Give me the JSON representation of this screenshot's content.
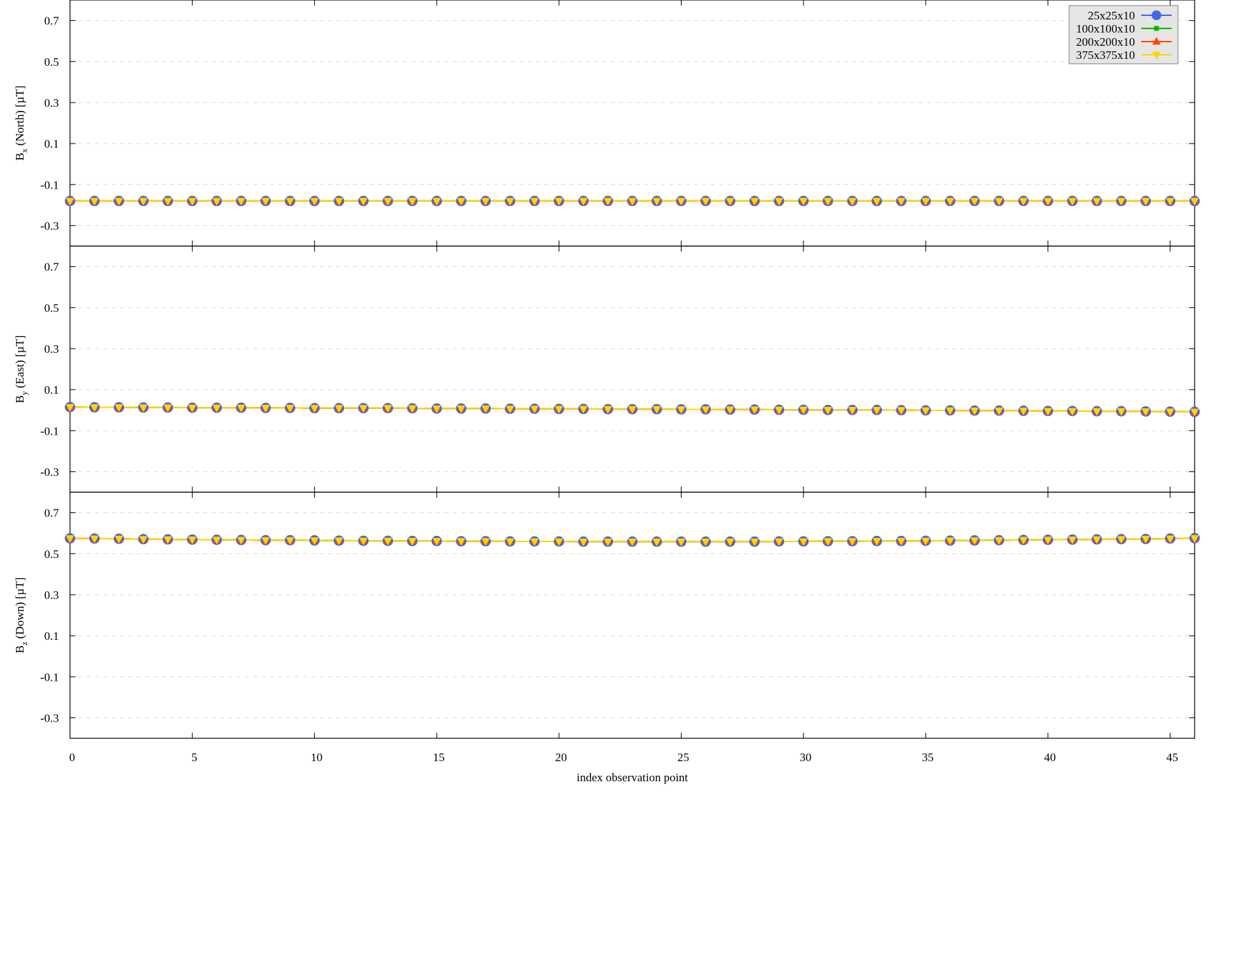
{
  "chart_data": {
    "type": "line",
    "xlabel": "index observation point",
    "x": [
      0,
      1,
      2,
      3,
      4,
      5,
      6,
      7,
      8,
      9,
      10,
      11,
      12,
      13,
      14,
      15,
      16,
      17,
      18,
      19,
      20,
      21,
      22,
      23,
      24,
      25,
      26,
      27,
      28,
      29,
      30,
      31,
      32,
      33,
      34,
      35,
      36,
      37,
      38,
      39,
      40,
      41,
      42,
      43,
      44,
      45,
      46
    ],
    "xlim": [
      0,
      46
    ],
    "xticks": [
      "0",
      "5",
      "10",
      "15",
      "20",
      "25",
      "30",
      "35",
      "40",
      "45"
    ],
    "ylim": [
      -0.4,
      0.8
    ],
    "yticks": [
      "0.7",
      "0.5",
      "0.3",
      "0.1",
      "-0.1",
      "-0.3"
    ],
    "grid": "horizontal dashed",
    "legend": {
      "placement": "top-right",
      "entries": [
        {
          "name": "25x25x10",
          "color": "#4169e1",
          "marker": "circle"
        },
        {
          "name": "100x100x10",
          "color": "#00b400",
          "marker": "square"
        },
        {
          "name": "200x200x10",
          "color": "#ff4500",
          "marker": "triangle-up"
        },
        {
          "name": "375x375x10",
          "color": "#ffd700",
          "marker": "triangle-down"
        }
      ]
    },
    "panels": [
      {
        "ylabel_main": "B",
        "ylabel_sub": "x",
        "ylabel_rest": " (North) [µT]",
        "values": [
          -0.18,
          -0.18,
          -0.18,
          -0.18,
          -0.18,
          -0.18,
          -0.18,
          -0.18,
          -0.18,
          -0.18,
          -0.18,
          -0.18,
          -0.18,
          -0.18,
          -0.18,
          -0.18,
          -0.18,
          -0.18,
          -0.18,
          -0.18,
          -0.18,
          -0.18,
          -0.18,
          -0.18,
          -0.18,
          -0.18,
          -0.18,
          -0.18,
          -0.18,
          -0.18,
          -0.18,
          -0.18,
          -0.18,
          -0.18,
          -0.18,
          -0.18,
          -0.18,
          -0.18,
          -0.18,
          -0.18,
          -0.18,
          -0.18,
          -0.18,
          -0.18,
          -0.18,
          -0.18,
          -0.18
        ]
      },
      {
        "ylabel_main": "B",
        "ylabel_sub": "y",
        "ylabel_rest": " (East) [µT]",
        "values": [
          0.015,
          0.014,
          0.014,
          0.013,
          0.013,
          0.012,
          0.012,
          0.012,
          0.011,
          0.011,
          0.01,
          0.01,
          0.01,
          0.01,
          0.009,
          0.008,
          0.008,
          0.008,
          0.007,
          0.007,
          0.006,
          0.006,
          0.005,
          0.005,
          0.005,
          0.004,
          0.004,
          0.003,
          0.003,
          0.002,
          0.002,
          0.001,
          0.001,
          0.001,
          0.0,
          -0.001,
          -0.001,
          -0.002,
          -0.002,
          -0.003,
          -0.004,
          -0.004,
          -0.005,
          -0.005,
          -0.006,
          -0.007,
          -0.008
        ]
      },
      {
        "ylabel_main": "B",
        "ylabel_sub": "z",
        "ylabel_rest": " (Down) [µT]",
        "values": [
          0.575,
          0.574,
          0.573,
          0.571,
          0.57,
          0.569,
          0.568,
          0.567,
          0.566,
          0.566,
          0.565,
          0.564,
          0.563,
          0.563,
          0.562,
          0.562,
          0.561,
          0.561,
          0.56,
          0.56,
          0.56,
          0.559,
          0.559,
          0.559,
          0.559,
          0.559,
          0.559,
          0.559,
          0.559,
          0.56,
          0.56,
          0.561,
          0.561,
          0.562,
          0.562,
          0.563,
          0.564,
          0.565,
          0.566,
          0.567,
          0.568,
          0.569,
          0.57,
          0.571,
          0.572,
          0.574,
          0.576
        ]
      }
    ]
  }
}
